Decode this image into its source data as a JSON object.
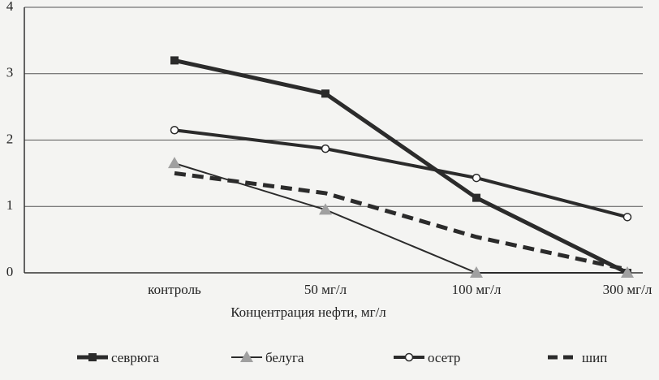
{
  "chart_data": {
    "type": "line",
    "x_label": "Концентрация нефти, мг/л",
    "categories": [
      "контроль",
      "50 мг/л",
      "100 мг/л",
      "300 мг/л"
    ],
    "series": [
      {
        "name": "севрюга",
        "color": "#2b2b2b",
        "marker": "square",
        "line_width": 5,
        "values": [
          3.2,
          2.7,
          1.13,
          0.0
        ]
      },
      {
        "name": "белуга",
        "color": "#2b2b2b",
        "marker_color": "#a0a0a0",
        "marker": "triangle",
        "line_width": 2,
        "values": [
          1.65,
          0.95,
          0.0,
          0.0
        ]
      },
      {
        "name": "осетр",
        "color": "#2b2b2b",
        "marker": "circle",
        "line_width": 4,
        "values": [
          2.15,
          1.87,
          1.43,
          0.84
        ]
      },
      {
        "name": "шип",
        "color": "#2b2b2b",
        "marker": "none",
        "line_style": "dashed",
        "line_width": 5,
        "values": [
          1.5,
          1.2,
          0.54,
          0.05
        ]
      }
    ],
    "ylim": [
      0,
      4
    ],
    "yticks": [
      0,
      1,
      2,
      3,
      4
    ],
    "grid": true,
    "legend": "bottom"
  }
}
